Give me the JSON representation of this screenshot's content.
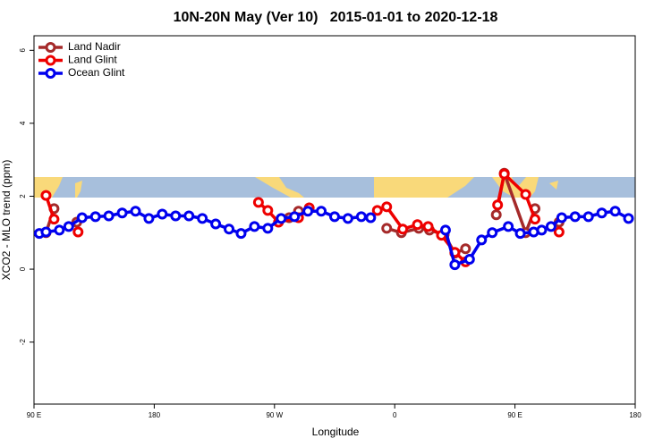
{
  "chart_data": {
    "type": "line",
    "title": "10N-20N May (Ver 10)   2015-01-01 to 2020-12-18",
    "xlabel": "Longitude",
    "ylabel": "XCO2 - MLO trend (ppm)",
    "xlim": [
      90,
      540
    ],
    "ylim": [
      -3.7,
      6.4
    ],
    "xticks": [
      {
        "value": 90,
        "label": "90 E"
      },
      180,
      {
        "value": 270,
        "label": "90 W"
      },
      {
        "value": 360,
        "label": "0"
      },
      {
        "value": 450,
        "label": "90 E"
      },
      {
        "value": 540,
        "label": "180"
      }
    ],
    "yticks": [
      -2,
      0,
      2,
      4,
      6
    ],
    "legend": "upper left",
    "series": [
      {
        "name": "Land Nadir",
        "color": "#a52a2a",
        "x": [
          99,
          105,
          null,
          122,
          null,
          281,
          288,
          null,
          354,
          365,
          378,
          386,
          397,
          405,
          413,
          null,
          436,
          442,
          458,
          465,
          null,
          483
        ],
        "values": [
          1.0,
          1.66,
          null,
          1.29,
          null,
          1.41,
          1.59,
          null,
          1.12,
          1.0,
          1.12,
          1.07,
          0.95,
          0.44,
          0.56,
          null,
          1.49,
          2.63,
          1.0,
          1.66,
          null,
          1.29
        ]
      },
      {
        "name": "Land Glint",
        "color": "#ee0000",
        "x": [
          99,
          105,
          null,
          123,
          null,
          258,
          265,
          273,
          288,
          296,
          null,
          347,
          354,
          366,
          377,
          385,
          395,
          405,
          413,
          null,
          437,
          442,
          458,
          465,
          null,
          483
        ],
        "values": [
          2.02,
          1.37,
          null,
          1.02,
          null,
          1.83,
          1.61,
          1.29,
          1.41,
          1.68,
          null,
          1.61,
          1.71,
          1.1,
          1.22,
          1.17,
          0.93,
          0.46,
          0.2,
          null,
          1.76,
          2.61,
          2.05,
          1.37,
          null,
          1.02
        ]
      },
      {
        "name": "Ocean Glint",
        "color": "#0000ee",
        "x": [
          94,
          99,
          109,
          116,
          126,
          136,
          146,
          156,
          166,
          176,
          186,
          196,
          206,
          216,
          226,
          236,
          245,
          255,
          265,
          275,
          285,
          295,
          305,
          315,
          325,
          335,
          342,
          null,
          398,
          405,
          416,
          425,
          433,
          445,
          454,
          464,
          470,
          477,
          485,
          495,
          505,
          515,
          525,
          535
        ],
        "values": [
          0.98,
          1.02,
          1.07,
          1.17,
          1.41,
          1.44,
          1.46,
          1.54,
          1.59,
          1.39,
          1.51,
          1.46,
          1.46,
          1.39,
          1.24,
          1.1,
          0.98,
          1.17,
          1.12,
          1.39,
          1.44,
          1.59,
          1.59,
          1.44,
          1.39,
          1.44,
          1.41,
          null,
          1.07,
          0.12,
          0.27,
          0.8,
          1.0,
          1.17,
          0.98,
          1.02,
          1.07,
          1.17,
          1.41,
          1.44,
          1.44,
          1.54,
          1.59,
          1.39
        ]
      }
    ]
  }
}
